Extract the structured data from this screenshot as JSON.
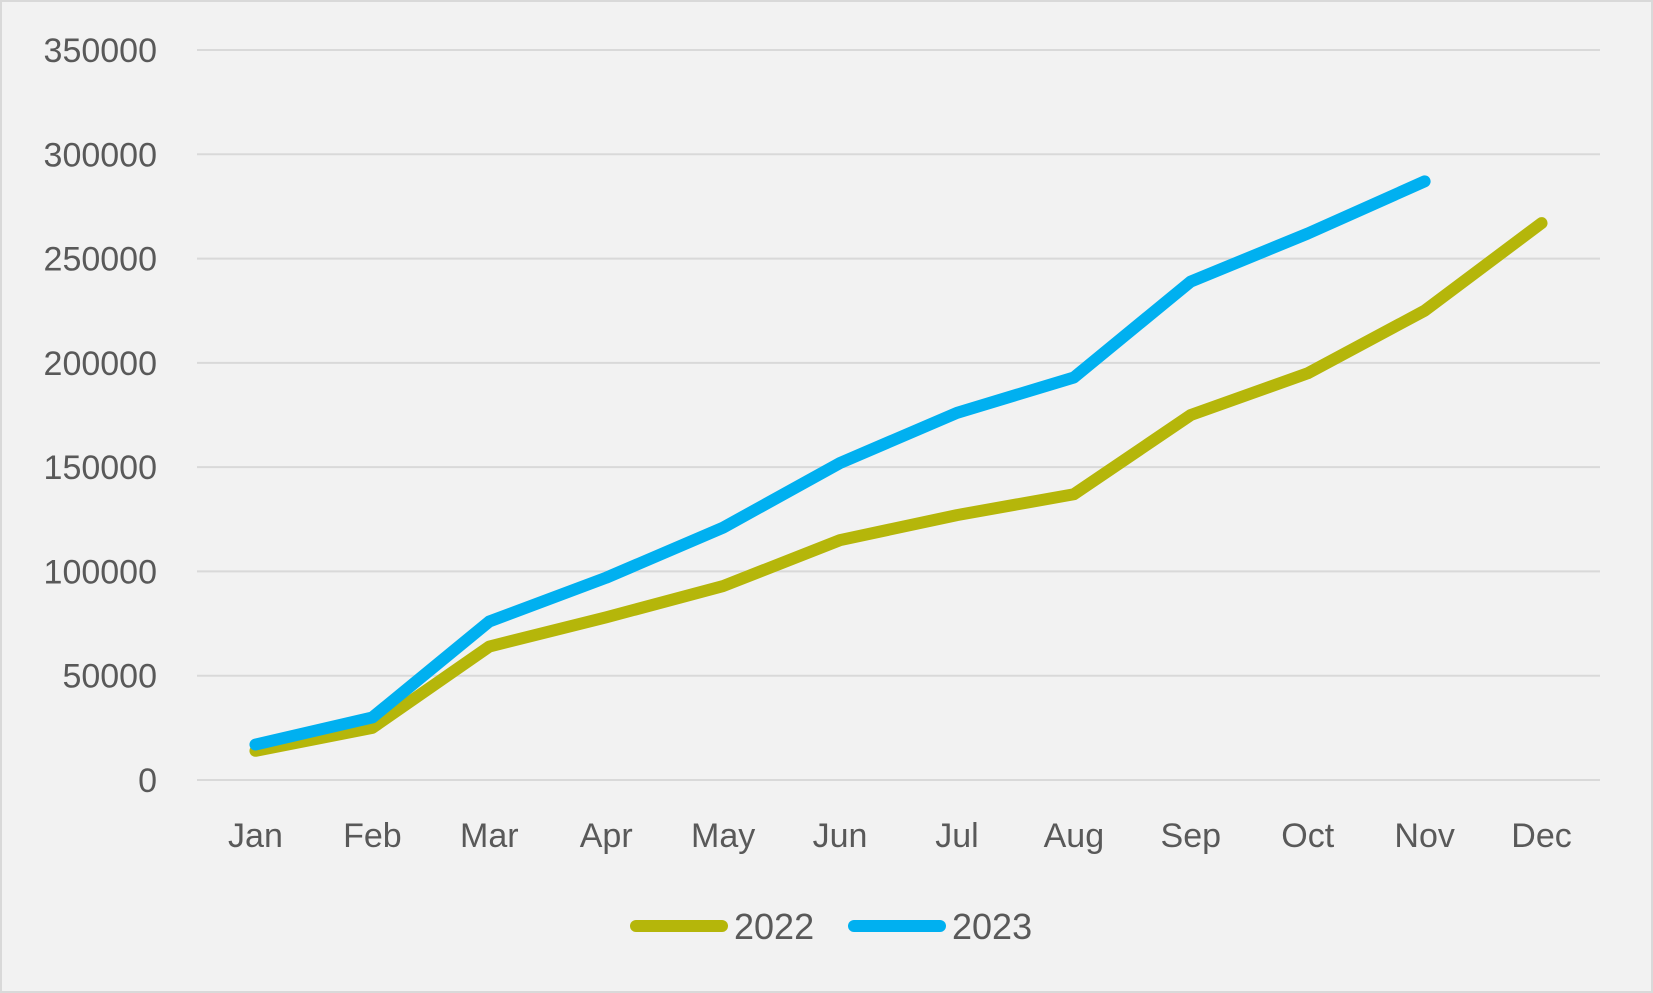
{
  "chart_data": {
    "type": "line",
    "title": "",
    "xlabel": "",
    "ylabel": "",
    "categories": [
      "Jan",
      "Feb",
      "Mar",
      "Apr",
      "May",
      "Jun",
      "Jul",
      "Aug",
      "Sep",
      "Oct",
      "Nov",
      "Dec"
    ],
    "ylim": [
      0,
      350000
    ],
    "yticks": [
      0,
      50000,
      100000,
      150000,
      200000,
      250000,
      300000,
      350000
    ],
    "ytick_labels": [
      "0",
      "50000",
      "100000",
      "150000",
      "200000",
      "250000",
      "300000",
      "350000"
    ],
    "grid": "horizontal",
    "legend_position": "bottom",
    "series": [
      {
        "name": "2022",
        "color": "#b5b60a",
        "values": [
          14000,
          25000,
          64000,
          78000,
          93000,
          115000,
          127000,
          137000,
          175000,
          195000,
          225000,
          267000
        ]
      },
      {
        "name": "2023",
        "color": "#00b0f0",
        "values": [
          17000,
          30000,
          76000,
          97000,
          121000,
          152000,
          176000,
          193000,
          239000,
          262000,
          287000,
          null
        ]
      }
    ]
  }
}
